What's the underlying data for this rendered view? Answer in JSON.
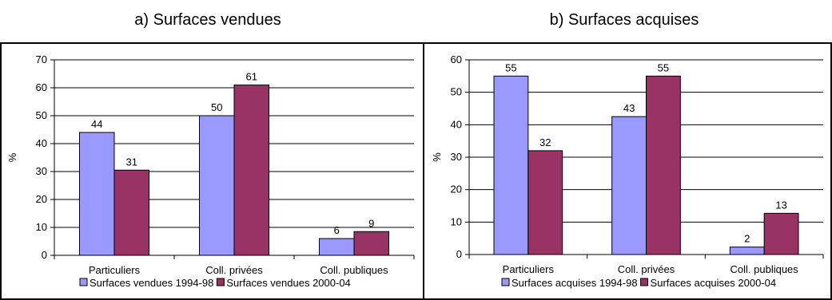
{
  "chart_data": [
    {
      "type": "bar",
      "title": "a) Surfaces vendues",
      "ylabel": "%",
      "ylim": [
        0,
        70
      ],
      "yticks": [
        0,
        10,
        20,
        30,
        40,
        50,
        60,
        70
      ],
      "grid": true,
      "legend": "bottom",
      "categories": [
        "Particuliers",
        "Coll. privées",
        "Coll. publiques"
      ],
      "series": [
        {
          "name": "Surfaces vendues 1994-98",
          "color": "#9999ff",
          "values": [
            44,
            50,
            6
          ],
          "labels": [
            "44",
            "50",
            "6"
          ]
        },
        {
          "name": "Surfaces vendues 2000-04",
          "color": "#993366",
          "values": [
            30.5,
            61,
            8.5
          ],
          "labels": [
            "31",
            "61",
            "9"
          ]
        }
      ]
    },
    {
      "type": "bar",
      "title": "b) Surfaces acquises",
      "ylabel": "%",
      "ylim": [
        0,
        60
      ],
      "yticks": [
        0,
        10,
        20,
        30,
        40,
        50,
        60
      ],
      "grid": true,
      "legend": "bottom",
      "categories": [
        "Particuliers",
        "Coll. privées",
        "Coll. publiques"
      ],
      "series": [
        {
          "name": "Surfaces acquises 1994-98",
          "color": "#9999ff",
          "values": [
            55,
            42.5,
            2.3
          ],
          "labels": [
            "55",
            "43",
            "2"
          ]
        },
        {
          "name": "Surfaces acquises 2000-04",
          "color": "#993366",
          "values": [
            32,
            55,
            12.7
          ],
          "labels": [
            "32",
            "55",
            "13"
          ]
        }
      ]
    }
  ]
}
